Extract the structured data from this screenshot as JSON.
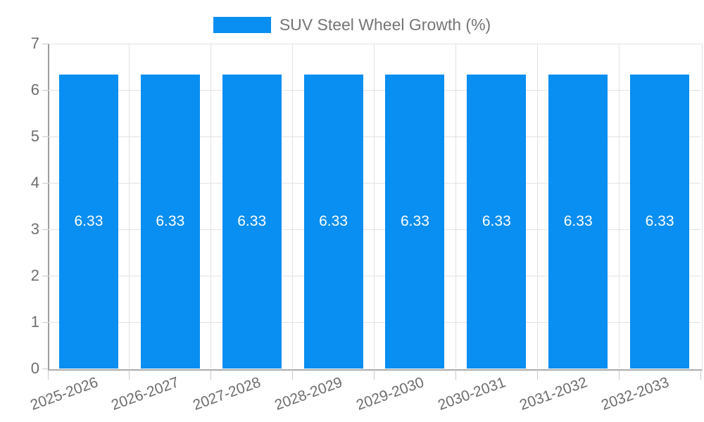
{
  "legend": {
    "label": "SUV Steel Wheel Growth (%)"
  },
  "colors": {
    "bar": "#098EF1",
    "legend_text": "#757575",
    "tick_text": "#6d6d6d",
    "grid": "#e3e3e3",
    "axis": "#9e9e9e",
    "tick_mark": "#c9c9c9",
    "value_label": "#ffffff",
    "background": "#ffffff"
  },
  "chart_data": {
    "type": "bar",
    "title": "",
    "xlabel": "",
    "ylabel": "",
    "categories": [
      "2025-2026",
      "2026-2027",
      "2027-2028",
      "2028-2029",
      "2029-2030",
      "2030-2031",
      "2031-2032",
      "2032-2033"
    ],
    "series": [
      {
        "name": "SUV Steel Wheel Growth (%)",
        "values": [
          6.33,
          6.33,
          6.33,
          6.33,
          6.33,
          6.33,
          6.33,
          6.33
        ]
      }
    ],
    "value_label_format": "2 decimals, white, centered inside bar",
    "ylim": [
      0,
      7
    ],
    "yticks": [
      0,
      1,
      2,
      3,
      4,
      5,
      6,
      7
    ],
    "grid": true,
    "legend_position": "top-center",
    "xtick_rotation_deg": -20
  }
}
